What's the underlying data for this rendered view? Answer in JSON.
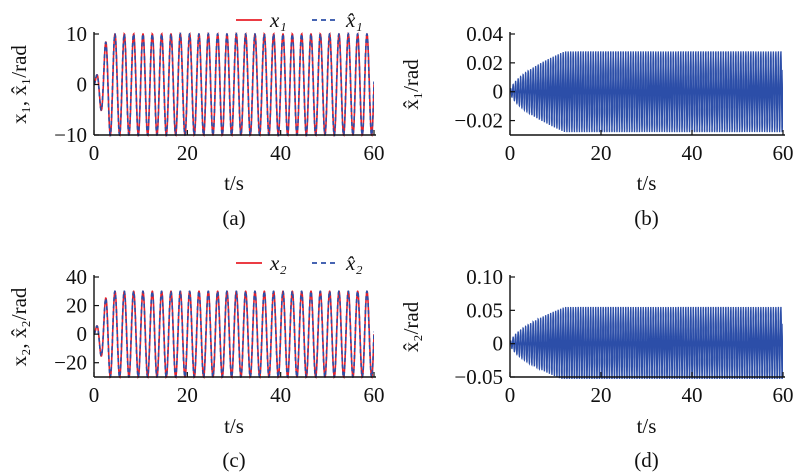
{
  "chart_data": [
    {
      "type": "line",
      "panel_label": "(a)",
      "xlabel": "t/s",
      "ylabel": "x₁, x̂₁/rad",
      "xlim": [
        0,
        60
      ],
      "ylim": [
        -10,
        10
      ],
      "xticks": [
        "0",
        "20",
        "40",
        "60"
      ],
      "yticks": [
        "10",
        "0",
        "−10"
      ],
      "legend": "top-right",
      "grid": false,
      "signal": {
        "amplitude": 10,
        "period_s": 2.0,
        "rise_time_s": 3
      },
      "series": [
        {
          "name": "x₁",
          "color": "#e8202a",
          "style": "solid"
        },
        {
          "name": "x̂₁",
          "color": "#2c4ea8",
          "style": "dashed"
        }
      ]
    },
    {
      "type": "line",
      "panel_label": "(b)",
      "xlabel": "t/s",
      "ylabel": "x̂₁/rad",
      "xlim": [
        0,
        60
      ],
      "ylim": [
        -0.03,
        0.04
      ],
      "xticks": [
        "0",
        "20",
        "40",
        "60"
      ],
      "yticks": [
        "0.04",
        "0.02",
        "0",
        "−0.02"
      ],
      "grid": false,
      "signal": {
        "amplitude": 0.028,
        "period_s": 0.55,
        "rise_time_s": 12
      },
      "series": [
        {
          "color": "#2c4ea8",
          "style": "solid"
        }
      ]
    },
    {
      "type": "line",
      "panel_label": "(c)",
      "xlabel": "t/s",
      "ylabel": "x₂, x̂₂/rad",
      "xlim": [
        0,
        60
      ],
      "ylim": [
        -30,
        40
      ],
      "xticks": [
        "0",
        "20",
        "40",
        "60"
      ],
      "yticks": [
        "40",
        "20",
        "0",
        "−20"
      ],
      "legend": "top-right",
      "grid": false,
      "signal": {
        "amplitude": 30,
        "period_s": 2.0,
        "rise_time_s": 3
      },
      "series": [
        {
          "name": "x₂",
          "color": "#e8202a",
          "style": "solid"
        },
        {
          "name": "x̂₂",
          "color": "#2c4ea8",
          "style": "dashed"
        }
      ]
    },
    {
      "type": "line",
      "panel_label": "(d)",
      "xlabel": "t/s",
      "ylabel": "x̂₂/rad",
      "xlim": [
        0,
        60
      ],
      "ylim": [
        -0.05,
        0.1
      ],
      "xticks": [
        "0",
        "20",
        "40",
        "60"
      ],
      "yticks": [
        "0.10",
        "0.05",
        "0",
        "−0.05"
      ],
      "grid": false,
      "signal": {
        "amplitude": 0.055,
        "period_s": 0.55,
        "rise_time_s": 12
      },
      "series": [
        {
          "color": "#2c4ea8",
          "style": "solid"
        }
      ]
    }
  ]
}
